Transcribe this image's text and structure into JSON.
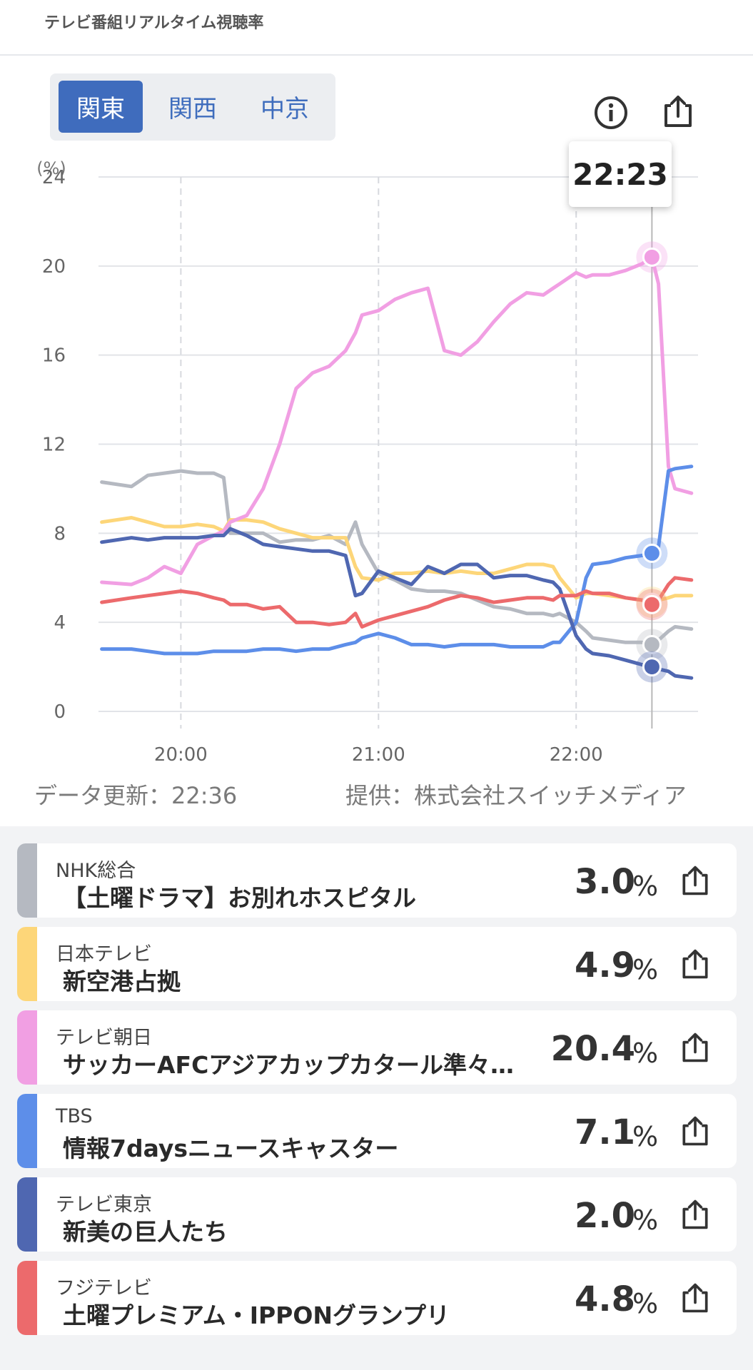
{
  "app": {
    "title": "テレビ番組リアルタイム視聴率"
  },
  "regions": {
    "tabs": [
      "関東",
      "関西",
      "中京"
    ],
    "selected": "関東"
  },
  "icons": {
    "info": "info-icon",
    "share": "share-icon"
  },
  "tooltip": {
    "time": "22:23"
  },
  "footer": {
    "updated": "データ更新：22:36",
    "provider": "提供：株式会社スイッチメディア"
  },
  "chart_data": {
    "type": "line",
    "y_unit": "(%)",
    "ylim": [
      0,
      24
    ],
    "yticks": [
      "0",
      "4",
      "8",
      "12",
      "16",
      "20",
      "24"
    ],
    "xticks": [
      "20:00",
      "21:00",
      "22:00"
    ],
    "grid": true,
    "cursor_time": "22:23",
    "x": [
      "19:36",
      "19:45",
      "19:50",
      "19:55",
      "20:00",
      "20:05",
      "20:10",
      "20:13",
      "20:15",
      "20:20",
      "20:25",
      "20:30",
      "20:35",
      "20:40",
      "20:45",
      "20:50",
      "20:53",
      "20:55",
      "21:00",
      "21:05",
      "21:10",
      "21:15",
      "21:20",
      "21:25",
      "21:30",
      "21:35",
      "21:40",
      "21:45",
      "21:50",
      "21:53",
      "21:55",
      "22:00",
      "22:03",
      "22:05",
      "22:10",
      "22:15",
      "22:20",
      "22:23",
      "22:25",
      "22:28",
      "22:30",
      "22:35"
    ],
    "series": [
      {
        "name": "NHK総合",
        "color": "#b5b9c1",
        "values": [
          10.3,
          10.1,
          10.6,
          10.7,
          10.8,
          10.7,
          10.7,
          10.5,
          8.0,
          8.0,
          8.0,
          7.6,
          7.7,
          7.7,
          7.9,
          7.5,
          8.5,
          7.5,
          6.2,
          5.9,
          5.5,
          5.4,
          5.4,
          5.3,
          5.0,
          4.7,
          4.6,
          4.4,
          4.4,
          4.3,
          4.4,
          4.0,
          3.6,
          3.3,
          3.2,
          3.1,
          3.1,
          3.0,
          3.2,
          3.6,
          3.8,
          3.7
        ]
      },
      {
        "name": "日本テレビ",
        "color": "#fdd679",
        "values": [
          8.5,
          8.7,
          8.5,
          8.3,
          8.3,
          8.4,
          8.3,
          8.1,
          8.6,
          8.6,
          8.5,
          8.2,
          8.0,
          7.8,
          7.8,
          7.8,
          6.5,
          6.0,
          5.9,
          6.2,
          6.2,
          6.3,
          6.2,
          6.3,
          6.2,
          6.2,
          6.4,
          6.6,
          6.6,
          6.5,
          6.0,
          5.1,
          5.3,
          5.3,
          5.2,
          5.1,
          5.0,
          4.9,
          5.0,
          5.1,
          5.2,
          5.2
        ]
      },
      {
        "name": "テレビ朝日",
        "color": "#f19fe3",
        "values": [
          5.8,
          5.7,
          6.0,
          6.5,
          6.2,
          7.5,
          7.9,
          8.1,
          8.5,
          8.8,
          10.0,
          12.0,
          14.5,
          15.2,
          15.5,
          16.2,
          17.0,
          17.8,
          18.0,
          18.5,
          18.8,
          19.0,
          16.2,
          16.0,
          16.6,
          17.5,
          18.3,
          18.8,
          18.7,
          19.0,
          19.2,
          19.7,
          19.5,
          19.6,
          19.6,
          19.8,
          20.1,
          20.4,
          19.2,
          11.0,
          10.0,
          9.8
        ]
      },
      {
        "name": "TBS",
        "color": "#5d8ee9",
        "values": [
          2.8,
          2.8,
          2.7,
          2.6,
          2.6,
          2.6,
          2.7,
          2.7,
          2.7,
          2.7,
          2.8,
          2.8,
          2.7,
          2.8,
          2.8,
          3.0,
          3.1,
          3.3,
          3.5,
          3.3,
          3.0,
          3.0,
          2.9,
          3.0,
          3.0,
          3.0,
          2.9,
          2.9,
          2.9,
          3.1,
          3.1,
          4.0,
          6.0,
          6.6,
          6.7,
          6.9,
          7.0,
          7.1,
          7.4,
          10.8,
          10.9,
          11.0
        ]
      },
      {
        "name": "テレビ東京",
        "color": "#4f67b1",
        "values": [
          7.6,
          7.8,
          7.7,
          7.8,
          7.8,
          7.8,
          7.9,
          7.9,
          8.2,
          7.9,
          7.5,
          7.4,
          7.3,
          7.2,
          7.2,
          7.0,
          5.2,
          5.3,
          6.3,
          6.0,
          5.7,
          6.5,
          6.2,
          6.6,
          6.6,
          6.0,
          6.1,
          6.1,
          5.9,
          5.8,
          5.5,
          3.4,
          2.8,
          2.6,
          2.5,
          2.3,
          2.1,
          2.0,
          1.9,
          1.8,
          1.6,
          1.5
        ]
      },
      {
        "name": "フジテレビ",
        "color": "#ec6a6c",
        "values": [
          4.9,
          5.1,
          5.2,
          5.3,
          5.4,
          5.3,
          5.1,
          5.0,
          4.8,
          4.8,
          4.6,
          4.7,
          4.0,
          4.0,
          3.9,
          4.0,
          4.4,
          3.8,
          4.1,
          4.3,
          4.5,
          4.7,
          5.0,
          5.2,
          5.1,
          4.9,
          5.0,
          5.1,
          5.1,
          5.0,
          5.2,
          5.2,
          5.4,
          5.3,
          5.3,
          5.1,
          5.0,
          4.8,
          5.0,
          5.7,
          6.0,
          5.9
        ]
      }
    ]
  },
  "list": [
    {
      "channel": "NHK総合",
      "program": "【土曜ドラマ】お別れホスピタル",
      "value": "3.0",
      "unit": "%",
      "color": "#b5b9c1"
    },
    {
      "channel": "日本テレビ",
      "program": "新空港占拠",
      "value": "4.9",
      "unit": "%",
      "color": "#fdd679"
    },
    {
      "channel": "テレビ朝日",
      "program": "サッカーAFCアジアカップカタール準々…",
      "value": "20.4",
      "unit": "%",
      "color": "#f19fe3"
    },
    {
      "channel": "TBS",
      "program": "情報7daysニュースキャスター",
      "value": "7.1",
      "unit": "%",
      "color": "#5d8ee9"
    },
    {
      "channel": "テレビ東京",
      "program": "新美の巨人たち",
      "value": "2.0",
      "unit": "%",
      "color": "#4f67b1"
    },
    {
      "channel": "フジテレビ",
      "program": "土曜プレミアム・IPPONグランプリ",
      "value": "4.8",
      "unit": "%",
      "color": "#ec6a6c"
    }
  ]
}
